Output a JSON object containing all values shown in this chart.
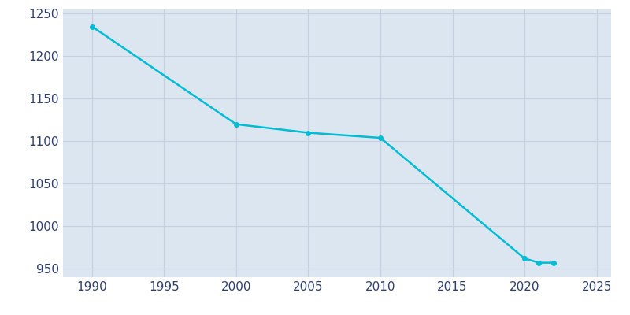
{
  "years": [
    1990,
    2000,
    2005,
    2010,
    2020,
    2021,
    2022
  ],
  "population": [
    1235,
    1120,
    1110,
    1104,
    962,
    957,
    957
  ],
  "line_color": "#00bcd4",
  "figure_bg_color": "#ffffff",
  "plot_bg_color": "#dce6f0",
  "line_width": 1.8,
  "marker": "o",
  "marker_size": 4,
  "xlim": [
    1988,
    2026
  ],
  "ylim": [
    940,
    1255
  ],
  "yticks": [
    950,
    1000,
    1050,
    1100,
    1150,
    1200,
    1250
  ],
  "xticks": [
    1990,
    1995,
    2000,
    2005,
    2010,
    2015,
    2020,
    2025
  ],
  "tick_label_color": "#2e3f6e",
  "tick_fontsize": 11,
  "grid_color": "#c5d0e0",
  "grid_linewidth": 0.8
}
